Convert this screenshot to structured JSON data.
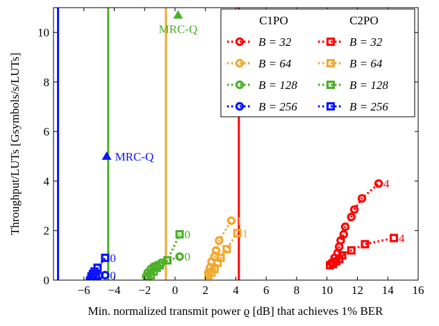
{
  "chart_data": {
    "type": "scatter",
    "title": "",
    "xlabel": "Min. normalized transmit power ϱ [dB] that achieves 1% BER",
    "ylabel": "Throughput/LUTs [Gsymbols/s/LUTs]",
    "xlim": [
      -8,
      16
    ],
    "ylim": [
      0,
      11
    ],
    "xticks": [
      -6,
      -4,
      -2,
      0,
      2,
      4,
      6,
      8,
      10,
      12,
      14,
      16
    ],
    "yticks": [
      0,
      2,
      4,
      6,
      8,
      10
    ],
    "grid": false,
    "legend_placement": "top-right",
    "legend": {
      "headers": [
        "C1PO",
        "C2PO"
      ],
      "items": [
        {
          "c1": "B = 32",
          "c2": "B = 32"
        },
        {
          "c1": "B = 64",
          "c2": "B = 64"
        },
        {
          "c1": "B = 128",
          "c2": "B = 128"
        },
        {
          "c1": "B = 256",
          "c2": "B = 256"
        }
      ]
    },
    "colors": {
      "32": "#ff0000",
      "64": "#f0a830",
      "128": "#4caf28",
      "256": "#0a14ff"
    },
    "vlines": [
      {
        "x": 4.2,
        "B": "32"
      },
      {
        "x": -0.6,
        "B": "64"
      },
      {
        "x": -4.4,
        "B": "128"
      },
      {
        "x": -7.7,
        "B": "256"
      }
    ],
    "markers": [
      {
        "label": "MRC-Q",
        "x": 0.2,
        "y": 10.7,
        "B": "128"
      },
      {
        "label": "MRC-Q",
        "x": -4.5,
        "y": 5.0,
        "B": "256"
      }
    ],
    "series": [
      {
        "method": "C1PO",
        "B": "32",
        "marker": "circle",
        "end_label": "4",
        "points": [
          [
            10.3,
            0.7
          ],
          [
            10.5,
            0.9
          ],
          [
            10.7,
            1.1
          ],
          [
            10.8,
            1.35
          ],
          [
            10.9,
            1.6
          ],
          [
            11.1,
            1.85
          ],
          [
            11.2,
            2.15
          ],
          [
            11.6,
            2.55
          ],
          [
            11.8,
            2.85
          ],
          [
            12.3,
            3.3
          ],
          [
            13.4,
            3.9
          ]
        ]
      },
      {
        "method": "C2PO",
        "B": "32",
        "marker": "square",
        "end_label": "4",
        "points": [
          [
            10.2,
            0.6
          ],
          [
            10.4,
            0.65
          ],
          [
            10.6,
            0.75
          ],
          [
            10.8,
            0.85
          ],
          [
            11.0,
            1.0
          ],
          [
            11.6,
            1.2
          ],
          [
            12.5,
            1.45
          ],
          [
            14.4,
            1.7
          ]
        ]
      },
      {
        "method": "C1PO",
        "B": "64",
        "marker": "circle",
        "end_label": "1",
        "points": [
          [
            2.2,
            0.3
          ],
          [
            2.3,
            0.5
          ],
          [
            2.4,
            0.75
          ],
          [
            2.6,
            0.95
          ],
          [
            2.7,
            1.2
          ],
          [
            2.9,
            1.6
          ],
          [
            3.7,
            2.4
          ]
        ]
      },
      {
        "method": "C2PO",
        "B": "64",
        "marker": "square",
        "end_label": "1",
        "points": [
          [
            2.2,
            0.2
          ],
          [
            2.4,
            0.3
          ],
          [
            2.6,
            0.45
          ],
          [
            2.8,
            0.7
          ],
          [
            3.0,
            0.9
          ],
          [
            3.4,
            1.25
          ],
          [
            4.1,
            1.9
          ]
        ]
      },
      {
        "method": "C1PO",
        "B": "128",
        "marker": "circle",
        "end_label": "0",
        "points": [
          [
            -1.9,
            0.15
          ],
          [
            -1.8,
            0.3
          ],
          [
            -1.6,
            0.45
          ],
          [
            -1.4,
            0.55
          ],
          [
            -1.2,
            0.6
          ],
          [
            -0.9,
            0.7
          ],
          [
            0.3,
            0.95
          ]
        ]
      },
      {
        "method": "C2PO",
        "B": "128",
        "marker": "square",
        "end_label": "0",
        "points": [
          [
            -1.8,
            0.1
          ],
          [
            -1.6,
            0.2
          ],
          [
            -1.4,
            0.35
          ],
          [
            -1.2,
            0.5
          ],
          [
            -1.0,
            0.6
          ],
          [
            -0.5,
            0.8
          ],
          [
            0.3,
            1.85
          ]
        ]
      },
      {
        "method": "C1PO",
        "B": "256",
        "marker": "circle",
        "end_label": "0",
        "points": [
          [
            -5.6,
            0.05
          ],
          [
            -5.5,
            0.1
          ],
          [
            -5.4,
            0.12
          ],
          [
            -5.2,
            0.15
          ],
          [
            -5.0,
            0.18
          ],
          [
            -4.6,
            0.2
          ]
        ]
      },
      {
        "method": "C2PO",
        "B": "256",
        "marker": "square",
        "end_label": "0",
        "points": [
          [
            -5.5,
            0.15
          ],
          [
            -5.4,
            0.25
          ],
          [
            -5.3,
            0.35
          ],
          [
            -5.1,
            0.5
          ],
          [
            -4.6,
            0.9
          ]
        ]
      }
    ]
  }
}
